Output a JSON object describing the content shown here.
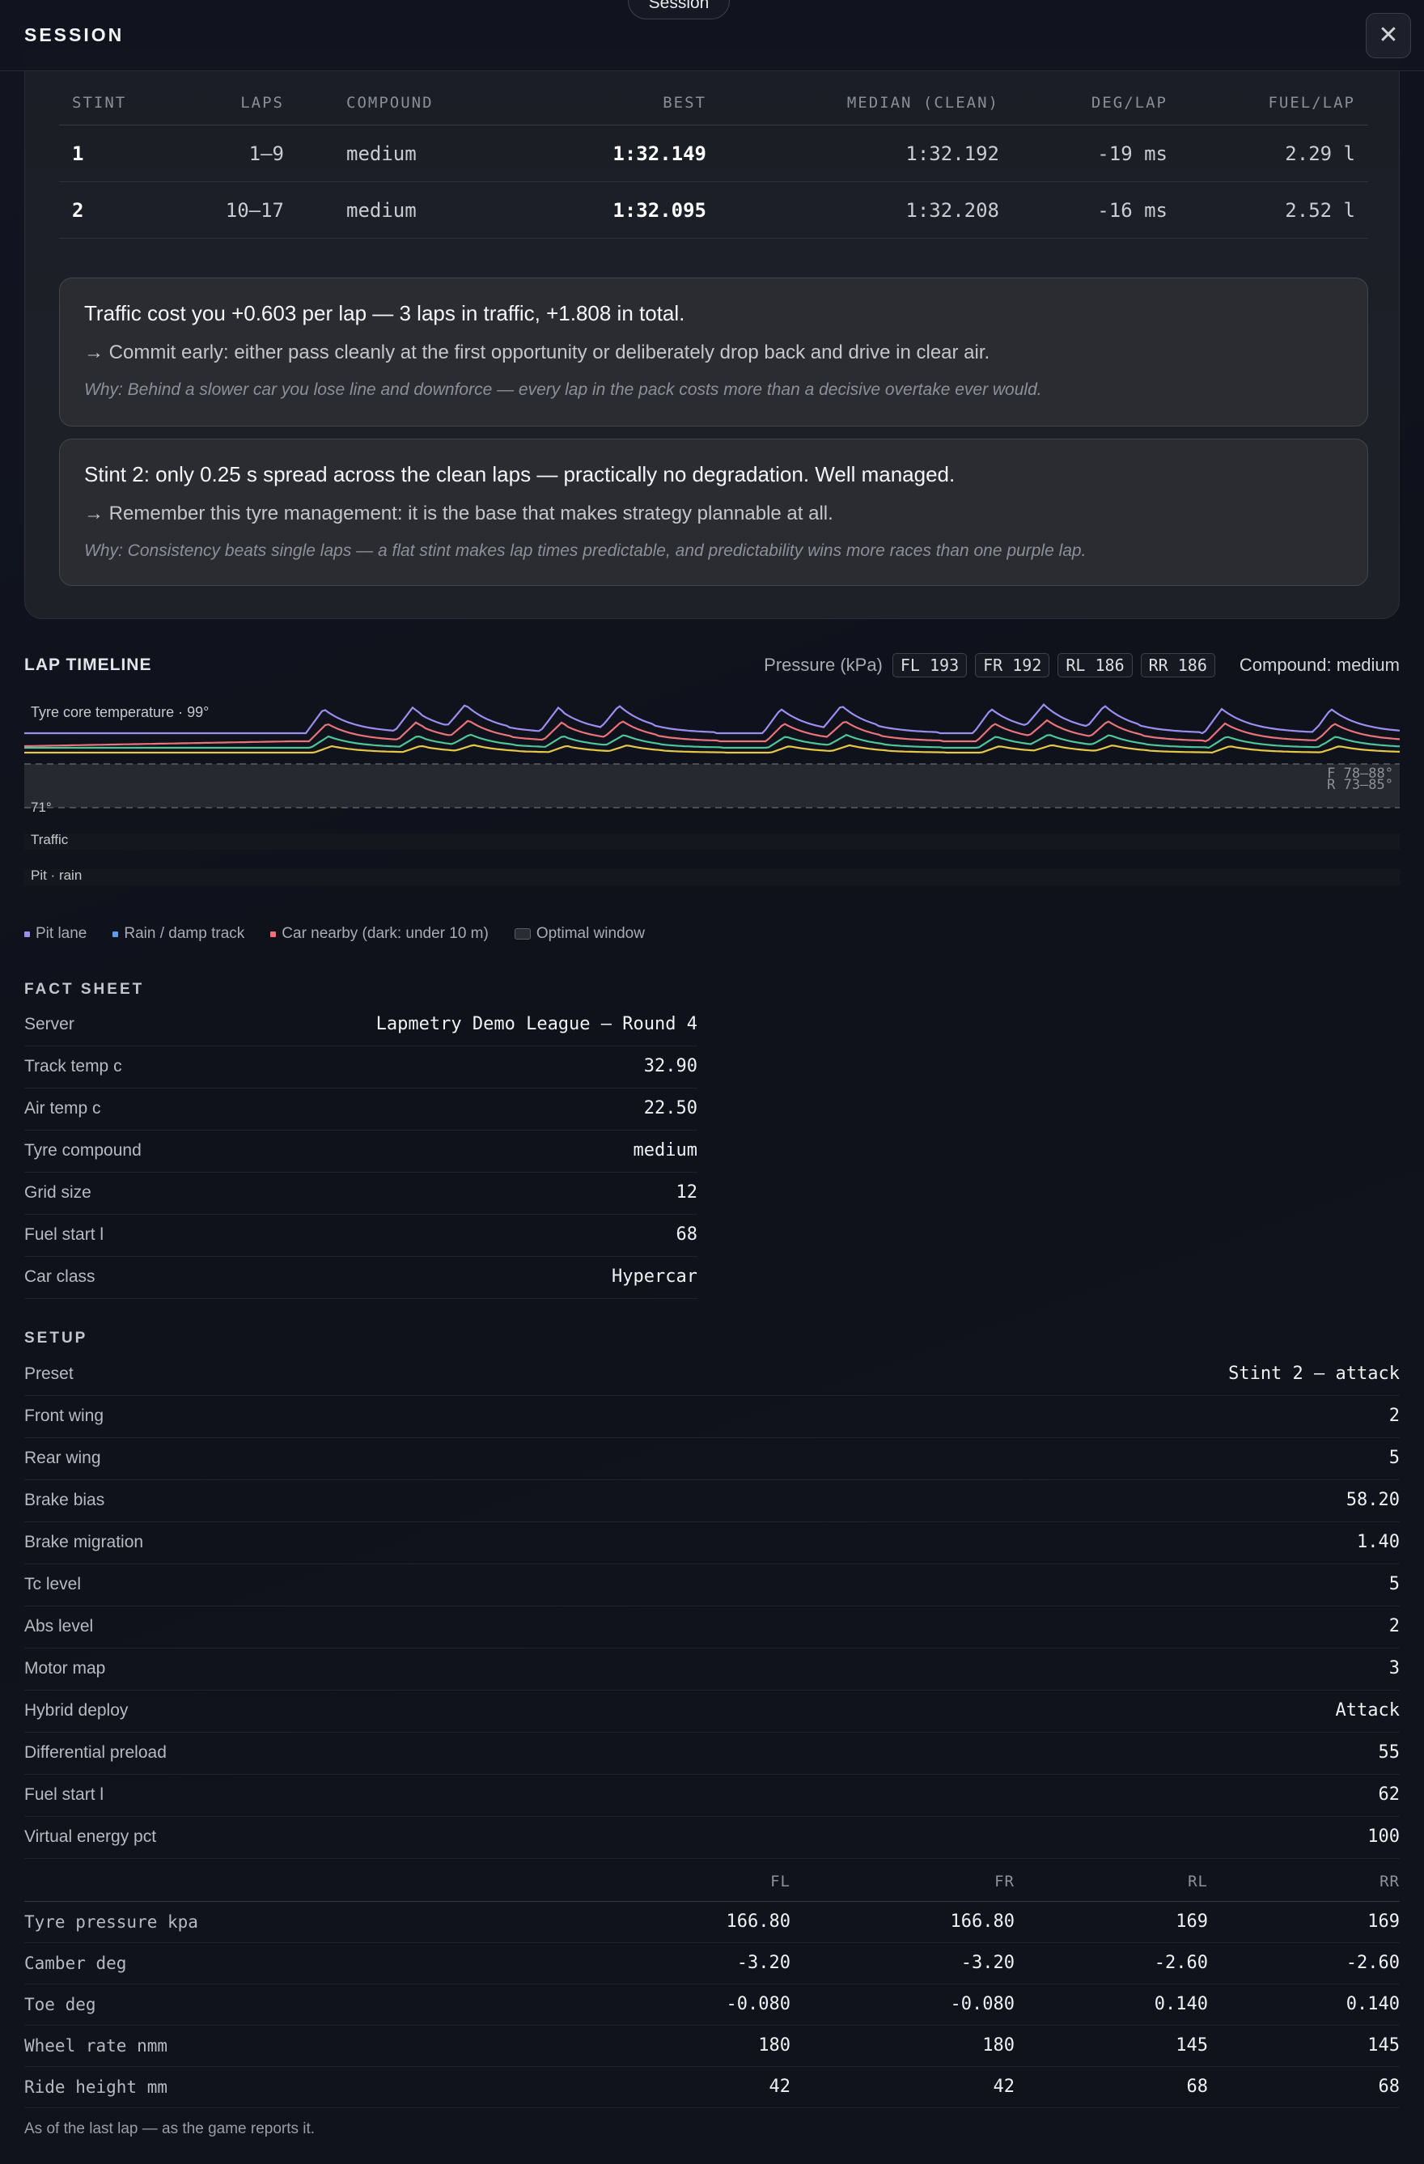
{
  "header": {
    "title": "SESSION",
    "session_pill": "Session",
    "close_icon": "close-icon"
  },
  "stints": {
    "columns": [
      "STINT",
      "LAPS",
      "COMPOUND",
      "BEST",
      "MEDIAN (CLEAN)",
      "DEG/LAP",
      "FUEL/LAP"
    ],
    "rows": [
      {
        "stint": "1",
        "laps": "1–9",
        "compound": "medium",
        "best": "1:32.149",
        "median": "1:32.192",
        "deg": "-19 ms",
        "fuel": "2.29 l"
      },
      {
        "stint": "2",
        "laps": "10–17",
        "compound": "medium",
        "best": "1:32.095",
        "median": "1:32.208",
        "deg": "-16 ms",
        "fuel": "2.52 l"
      }
    ]
  },
  "insights": [
    {
      "headline": "Traffic cost you +0.603 per lap — 3 laps in traffic, +1.808 in total.",
      "action": "→ Commit early: either pass cleanly at the first opportunity or deliberately drop back and drive in clear air.",
      "why": "Why: Behind a slower car you lose line and downforce — every lap in the pack costs more than a decisive overtake ever would."
    },
    {
      "headline": "Stint 2: only 0.25 s spread across the clean laps — practically no degradation. Well managed.",
      "action": "→ Remember this tyre management: it is the base that makes strategy plannable at all.",
      "why": "Why: Consistency beats single laps — a flat stint makes lap times predictable, and predictability wins more races than one purple lap."
    }
  ],
  "timeline": {
    "title": "LAP TIMELINE",
    "pressure_label": "Pressure (kPa)",
    "pressures": [
      "FL 193",
      "FR 192",
      "RL 186",
      "RR 186"
    ],
    "compound": "Compound: medium",
    "temp_label": "Tyre core temperature · 99°",
    "min_label": "71°",
    "window_front": "F 78–88°",
    "window_rear": "R 73–85°",
    "traffic_label": "Traffic",
    "pit_label": "Pit · rain",
    "colors": {
      "fl": "#9d8df1",
      "fr": "#e8737b",
      "rl": "#4fc59a",
      "rr": "#e5c84a"
    }
  },
  "legend": [
    {
      "label": "Pit lane",
      "color": "#9d8df1"
    },
    {
      "label": "Rain / damp track",
      "color": "#5b9bf0"
    },
    {
      "label": "Car nearby (dark: under 10 m)",
      "color": "#e8737b"
    },
    {
      "label": "Optimal window",
      "color": "#2a2c33"
    }
  ],
  "fact_sheet": {
    "title": "FACT SHEET",
    "rows": [
      {
        "k": "Server",
        "v": "Lapmetry Demo League — Round 4"
      },
      {
        "k": "Track temp c",
        "v": "32.90"
      },
      {
        "k": "Air temp c",
        "v": "22.50"
      },
      {
        "k": "Tyre compound",
        "v": "medium"
      },
      {
        "k": "Grid size",
        "v": "12"
      },
      {
        "k": "Fuel start l",
        "v": "68"
      },
      {
        "k": "Car class",
        "v": "Hypercar"
      }
    ]
  },
  "setup": {
    "title": "SETUP",
    "rows": [
      {
        "k": "Preset",
        "v": "Stint 2 — attack"
      },
      {
        "k": "Front wing",
        "v": "2"
      },
      {
        "k": "Rear wing",
        "v": "5"
      },
      {
        "k": "Brake bias",
        "v": "58.20"
      },
      {
        "k": "Brake migration",
        "v": "1.40"
      },
      {
        "k": "Tc level",
        "v": "5"
      },
      {
        "k": "Abs level",
        "v": "2"
      },
      {
        "k": "Motor map",
        "v": "3"
      },
      {
        "k": "Hybrid deploy",
        "v": "Attack"
      },
      {
        "k": "Differential preload",
        "v": "55"
      },
      {
        "k": "Fuel start l",
        "v": "62"
      },
      {
        "k": "Virtual energy pct",
        "v": "100"
      }
    ],
    "tyre_columns": [
      "FL",
      "FR",
      "RL",
      "RR"
    ],
    "tyre_rows": [
      {
        "k": "Tyre pressure kpa",
        "fl": "166.80",
        "fr": "166.80",
        "rl": "169",
        "rr": "169"
      },
      {
        "k": "Camber deg",
        "fl": "-3.20",
        "fr": "-3.20",
        "rl": "-2.60",
        "rr": "-2.60"
      },
      {
        "k": "Toe deg",
        "fl": "-0.080",
        "fr": "-0.080",
        "rl": "0.140",
        "rr": "0.140"
      },
      {
        "k": "Wheel rate nmm",
        "fl": "180",
        "fr": "180",
        "rl": "145",
        "rr": "145"
      },
      {
        "k": "Ride height mm",
        "fl": "42",
        "fr": "42",
        "rl": "68",
        "rr": "68"
      }
    ],
    "footnote": "As of the last lap — as the game reports it."
  }
}
